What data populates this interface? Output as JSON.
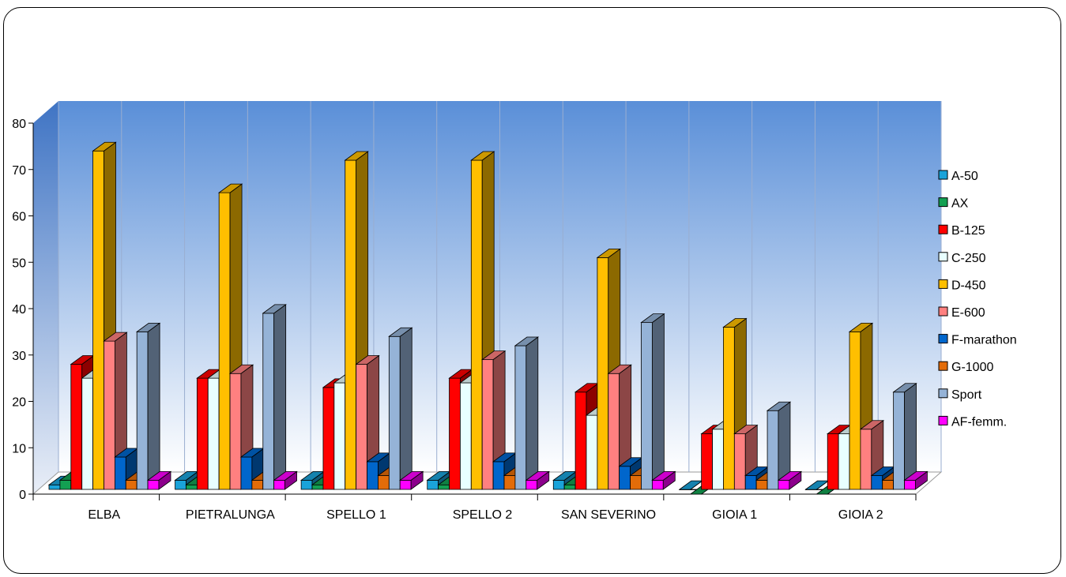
{
  "chart_data": {
    "type": "bar",
    "title": "",
    "xlabel": "",
    "ylabel": "",
    "ylim": [
      0,
      80
    ],
    "yticks": [
      0,
      10,
      20,
      30,
      40,
      50,
      60,
      70,
      80
    ],
    "grid": true,
    "legend_position": "right",
    "categories": [
      "ELBA",
      "PIETRALUNGA",
      "SPELLO 1",
      "SPELLO 2",
      "SAN SEVERINO",
      "GIOIA 1",
      "GIOIA 2"
    ],
    "series": [
      {
        "name": "A-50",
        "color": "#1aa3d9",
        "values": [
          2,
          3,
          3,
          3,
          3,
          1,
          1
        ]
      },
      {
        "name": "AX",
        "color": "#13a052",
        "values": [
          3,
          2,
          2,
          2,
          2,
          0,
          0
        ]
      },
      {
        "name": "B-125",
        "color": "#ff0000",
        "values": [
          28,
          25,
          23,
          25,
          22,
          13,
          13
        ]
      },
      {
        "name": "C-250",
        "color": "#e8ffff",
        "values": [
          25,
          25,
          24,
          24,
          17,
          14,
          13
        ]
      },
      {
        "name": "D-450",
        "color": "#ffbf00",
        "values": [
          74,
          65,
          72,
          72,
          51,
          36,
          35
        ]
      },
      {
        "name": "E-600",
        "color": "#ff8080",
        "values": [
          33,
          26,
          28,
          29,
          26,
          13,
          14
        ]
      },
      {
        "name": "F-marathon",
        "color": "#0066cc",
        "values": [
          8,
          8,
          7,
          7,
          6,
          4,
          4
        ]
      },
      {
        "name": "G-1000",
        "color": "#e36c09",
        "values": [
          3,
          3,
          4,
          4,
          4,
          3,
          3
        ]
      },
      {
        "name": "Sport",
        "color": "#95b3d7",
        "values": [
          35,
          39,
          34,
          32,
          37,
          18,
          22
        ]
      },
      {
        "name": "AF-femm.",
        "color": "#ff00ff",
        "values": [
          3,
          3,
          3,
          3,
          3,
          3,
          3
        ]
      }
    ]
  }
}
